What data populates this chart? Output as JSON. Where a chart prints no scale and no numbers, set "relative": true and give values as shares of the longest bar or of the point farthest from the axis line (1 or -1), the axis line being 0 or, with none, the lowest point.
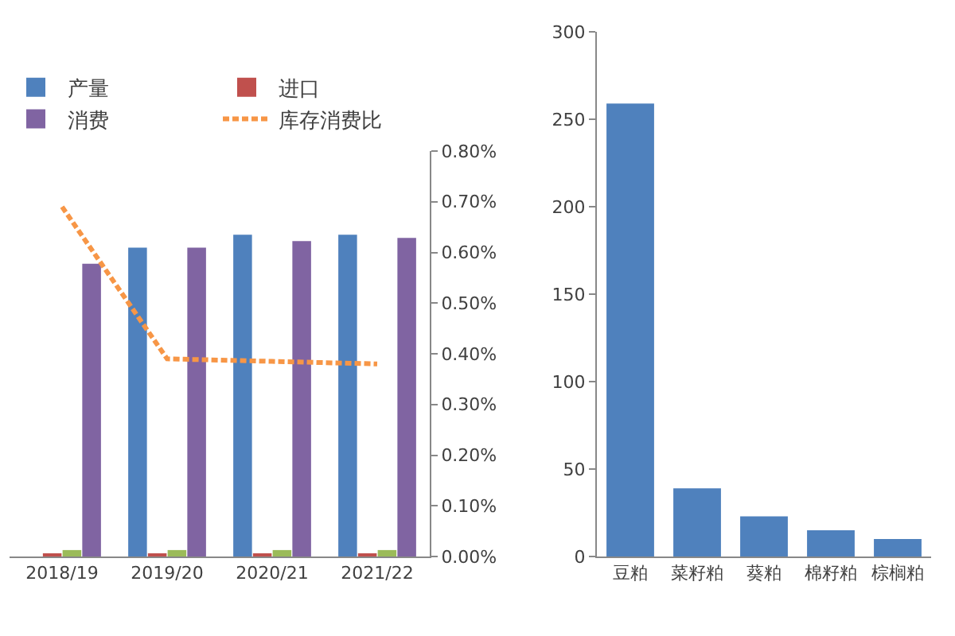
{
  "chart_data": [
    {
      "type": "bar",
      "relative": true,
      "categories": [
        "2018/19",
        "2019/20",
        "2020/21",
        "2021/22"
      ],
      "legend": "top",
      "grid": false,
      "y2lim": [
        0,
        0.8
      ],
      "y2ticks": [
        {
          "value": 0,
          "label": "0.00%"
        },
        {
          "value": 0.1,
          "label": "0.10%"
        },
        {
          "value": 0.2,
          "label": "0.20%"
        },
        {
          "value": 0.3,
          "label": "0.30%"
        },
        {
          "value": 0.4,
          "label": "0.40%"
        },
        {
          "value": 0.5,
          "label": "0.50%"
        },
        {
          "value": 0.6,
          "label": "0.60%"
        },
        {
          "value": 0.7,
          "label": "0.70%"
        },
        {
          "value": 0.8,
          "label": "0.80%"
        }
      ],
      "series": [
        {
          "name": "产量",
          "color": "#4f81bd",
          "values": [
            null,
            0.96,
            1.0,
            1.0
          ]
        },
        {
          "name": "进口",
          "color": "#c0504d",
          "values": [
            0.01,
            0.01,
            0.01,
            0.01
          ]
        },
        {
          "color": "#9bbb59",
          "values": [
            0.02,
            0.02,
            0.02,
            0.02
          ]
        },
        {
          "name": "消费",
          "color": "#8064a2",
          "values": [
            0.91,
            0.96,
            0.98,
            0.99
          ]
        },
        {
          "name": "库存消费比",
          "type": "line",
          "axis": "y2",
          "line_style": "dashed",
          "marker": "none",
          "color": "#f79646",
          "values": [
            0.69,
            0.39,
            0.385,
            0.38
          ]
        }
      ]
    },
    {
      "type": "bar",
      "categories": [
        "豆粕",
        "菜籽粕",
        "葵粕",
        "棉籽粕",
        "棕榈粕"
      ],
      "values": [
        259,
        39,
        23,
        15,
        10
      ],
      "color": "#4f81bd",
      "ylim": [
        0,
        300
      ],
      "yticks": [
        0,
        50,
        100,
        150,
        200,
        250,
        300
      ],
      "grid": false
    }
  ]
}
